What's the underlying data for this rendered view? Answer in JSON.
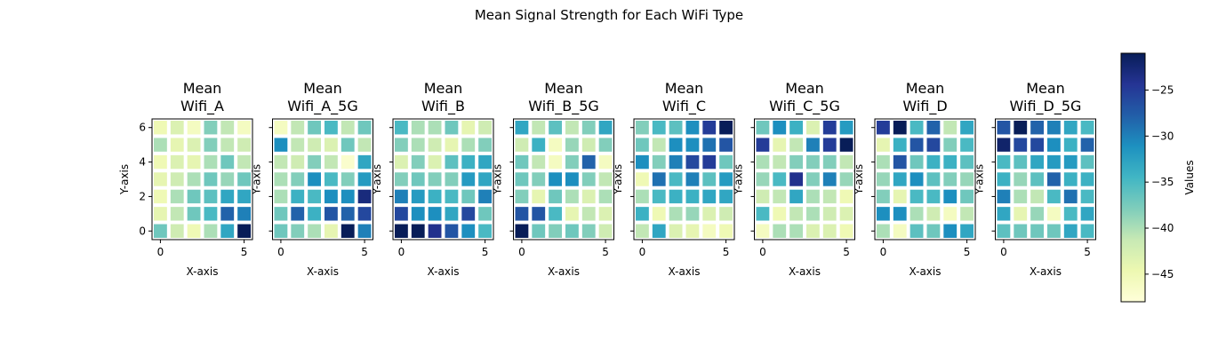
{
  "chart_data": {
    "type": "heatmap",
    "title": "Mean Signal Strength for Each WiFi Type",
    "xlabel": "X-axis",
    "ylabel": "Y-axis",
    "x_ticks": [
      0,
      5
    ],
    "y_ticks": [
      0,
      2,
      4,
      6
    ],
    "xlim": [
      -0.5,
      5.5
    ],
    "ylim": [
      -0.5,
      6.5
    ],
    "rows_y": [
      0,
      1,
      2,
      3,
      4,
      5,
      6
    ],
    "cols_x": [
      0,
      1,
      2,
      3,
      4,
      5
    ],
    "colormap": "YlGnBu",
    "vmin": -48,
    "vmax": -21,
    "colorbar": {
      "label": "Values",
      "ticks": [
        -45,
        -40,
        -35,
        -30,
        -25
      ],
      "tick_labels": [
        "−45",
        "−40",
        "−35",
        "−30",
        "−25"
      ]
    },
    "panels": [
      {
        "name": "Mean\nWifi_A",
        "title_lines": [
          "Mean",
          "Wifi_A"
        ],
        "values": [
          [
            -37,
            -42,
            -45,
            -40,
            -33,
            -21
          ],
          [
            -44,
            -41,
            -37,
            -35,
            -28,
            -30
          ],
          [
            -45,
            -40,
            -37,
            -36,
            -33,
            -33
          ],
          [
            -44,
            -42,
            -40,
            -37,
            -39,
            -37
          ],
          [
            -45,
            -43,
            -44,
            -40,
            -37,
            -41
          ],
          [
            -40,
            -44,
            -43,
            -38,
            -41,
            -42
          ],
          [
            -45,
            -43,
            -46,
            -38,
            -41,
            -46
          ]
        ]
      },
      {
        "name": "Mean\nWifi_A_5G",
        "title_lines": [
          "Mean",
          "Wifi_A_5G"
        ],
        "values": [
          [
            -37,
            -38,
            -40,
            -44,
            -21,
            -30
          ],
          [
            -37,
            -28,
            -34,
            -27,
            -28,
            -26
          ],
          [
            -40,
            -34,
            -35,
            -31,
            -31,
            -23
          ],
          [
            -40,
            -38,
            -31,
            -35,
            -38,
            -32
          ],
          [
            -41,
            -42,
            -38,
            -41,
            -47,
            -33
          ],
          [
            -31,
            -41,
            -42,
            -43,
            -37,
            -41
          ],
          [
            -46,
            -41,
            -37,
            -35,
            -41,
            -37
          ]
        ]
      },
      {
        "name": "Mean\nWifi_B",
        "title_lines": [
          "Mean",
          "Wifi_B"
        ],
        "values": [
          [
            -21,
            -20,
            -24,
            -27,
            -31,
            -35
          ],
          [
            -26,
            -31,
            -31,
            -33,
            -26,
            -37
          ],
          [
            -30,
            -32,
            -34,
            -35,
            -37,
            -30
          ],
          [
            -38,
            -37,
            -38,
            -38,
            -32,
            -33
          ],
          [
            -43,
            -38,
            -43,
            -36,
            -34,
            -33
          ],
          [
            -38,
            -40,
            -42,
            -44,
            -40,
            -38
          ],
          [
            -35,
            -40,
            -40,
            -37,
            -44,
            -42
          ]
        ]
      },
      {
        "name": "Mean\nWifi_B_5G",
        "title_lines": [
          "Mean",
          "Wifi_B_5G"
        ],
        "values": [
          [
            -21,
            -37,
            -38,
            -37,
            -38,
            -42
          ],
          [
            -27,
            -27,
            -35,
            -44,
            -41,
            -43
          ],
          [
            -38,
            -44,
            -37,
            -40,
            -43,
            -40
          ],
          [
            -37,
            -38,
            -31,
            -31,
            -38,
            -41
          ],
          [
            -37,
            -41,
            -46,
            -38,
            -28,
            -46
          ],
          [
            -42,
            -34,
            -46,
            -39,
            -42,
            -38
          ],
          [
            -33,
            -41,
            -36,
            -41,
            -38,
            -33
          ]
        ]
      },
      {
        "name": "Mean\nWifi_C",
        "title_lines": [
          "Mean",
          "Wifi_C"
        ],
        "values": [
          [
            -41,
            -33,
            -43,
            -44,
            -46,
            -45
          ],
          [
            -34,
            -45,
            -40,
            -39,
            -43,
            -42
          ],
          [
            -40,
            -35,
            -34,
            -34,
            -33,
            -33
          ],
          [
            -45,
            -29,
            -35,
            -30,
            -36,
            -32
          ],
          [
            -31,
            -38,
            -30,
            -26,
            -25,
            -37
          ],
          [
            -37,
            -41,
            -31,
            -31,
            -29,
            -27
          ],
          [
            -38,
            -35,
            -36,
            -31,
            -25,
            -21
          ]
        ]
      },
      {
        "name": "Mean\nWifi_C_5G",
        "title_lines": [
          "Mean",
          "Wifi_C_5G"
        ],
        "values": [
          [
            -46,
            -40,
            -40,
            -43,
            -43,
            -45
          ],
          [
            -35,
            -45,
            -41,
            -40,
            -42,
            -43
          ],
          [
            -42,
            -41,
            -33,
            -40,
            -41,
            -45
          ],
          [
            -39,
            -35,
            -24,
            -38,
            -30,
            -39
          ],
          [
            -40,
            -41,
            -38,
            -38,
            -38,
            -41
          ],
          [
            -25,
            -44,
            -41,
            -30,
            -25,
            -21
          ],
          [
            -37,
            -31,
            -34,
            -43,
            -25,
            -32
          ]
        ]
      },
      {
        "name": "Mean\nWifi_D",
        "title_lines": [
          "Mean",
          "Wifi_D"
        ],
        "values": [
          [
            -40,
            -46,
            -36,
            -37,
            -31,
            -33
          ],
          [
            -31,
            -31,
            -40,
            -42,
            -46,
            -41
          ],
          [
            -38,
            -44,
            -35,
            -35,
            -31,
            -37
          ],
          [
            -39,
            -33,
            -31,
            -36,
            -38,
            -39
          ],
          [
            -40,
            -27,
            -37,
            -34,
            -34,
            -36
          ],
          [
            -44,
            -34,
            -27,
            -26,
            -38,
            -35
          ],
          [
            -25,
            -21,
            -35,
            -28,
            -41,
            -33
          ]
        ]
      },
      {
        "name": "Mean\nWifi_D_5G",
        "title_lines": [
          "Mean",
          "Wifi_D_5G"
        ],
        "values": [
          [
            -36,
            -37,
            -37,
            -37,
            -33,
            -35
          ],
          [
            -33,
            -44,
            -39,
            -46,
            -35,
            -33
          ],
          [
            -30,
            -40,
            -41,
            -35,
            -29,
            -35
          ],
          [
            -34,
            -39,
            -36,
            -28,
            -34,
            -34
          ],
          [
            -35,
            -36,
            -33,
            -32,
            -32,
            -36
          ],
          [
            -22,
            -26,
            -26,
            -31,
            -34,
            -28
          ],
          [
            -27,
            -21,
            -28,
            -30,
            -33,
            -35
          ]
        ]
      }
    ]
  }
}
